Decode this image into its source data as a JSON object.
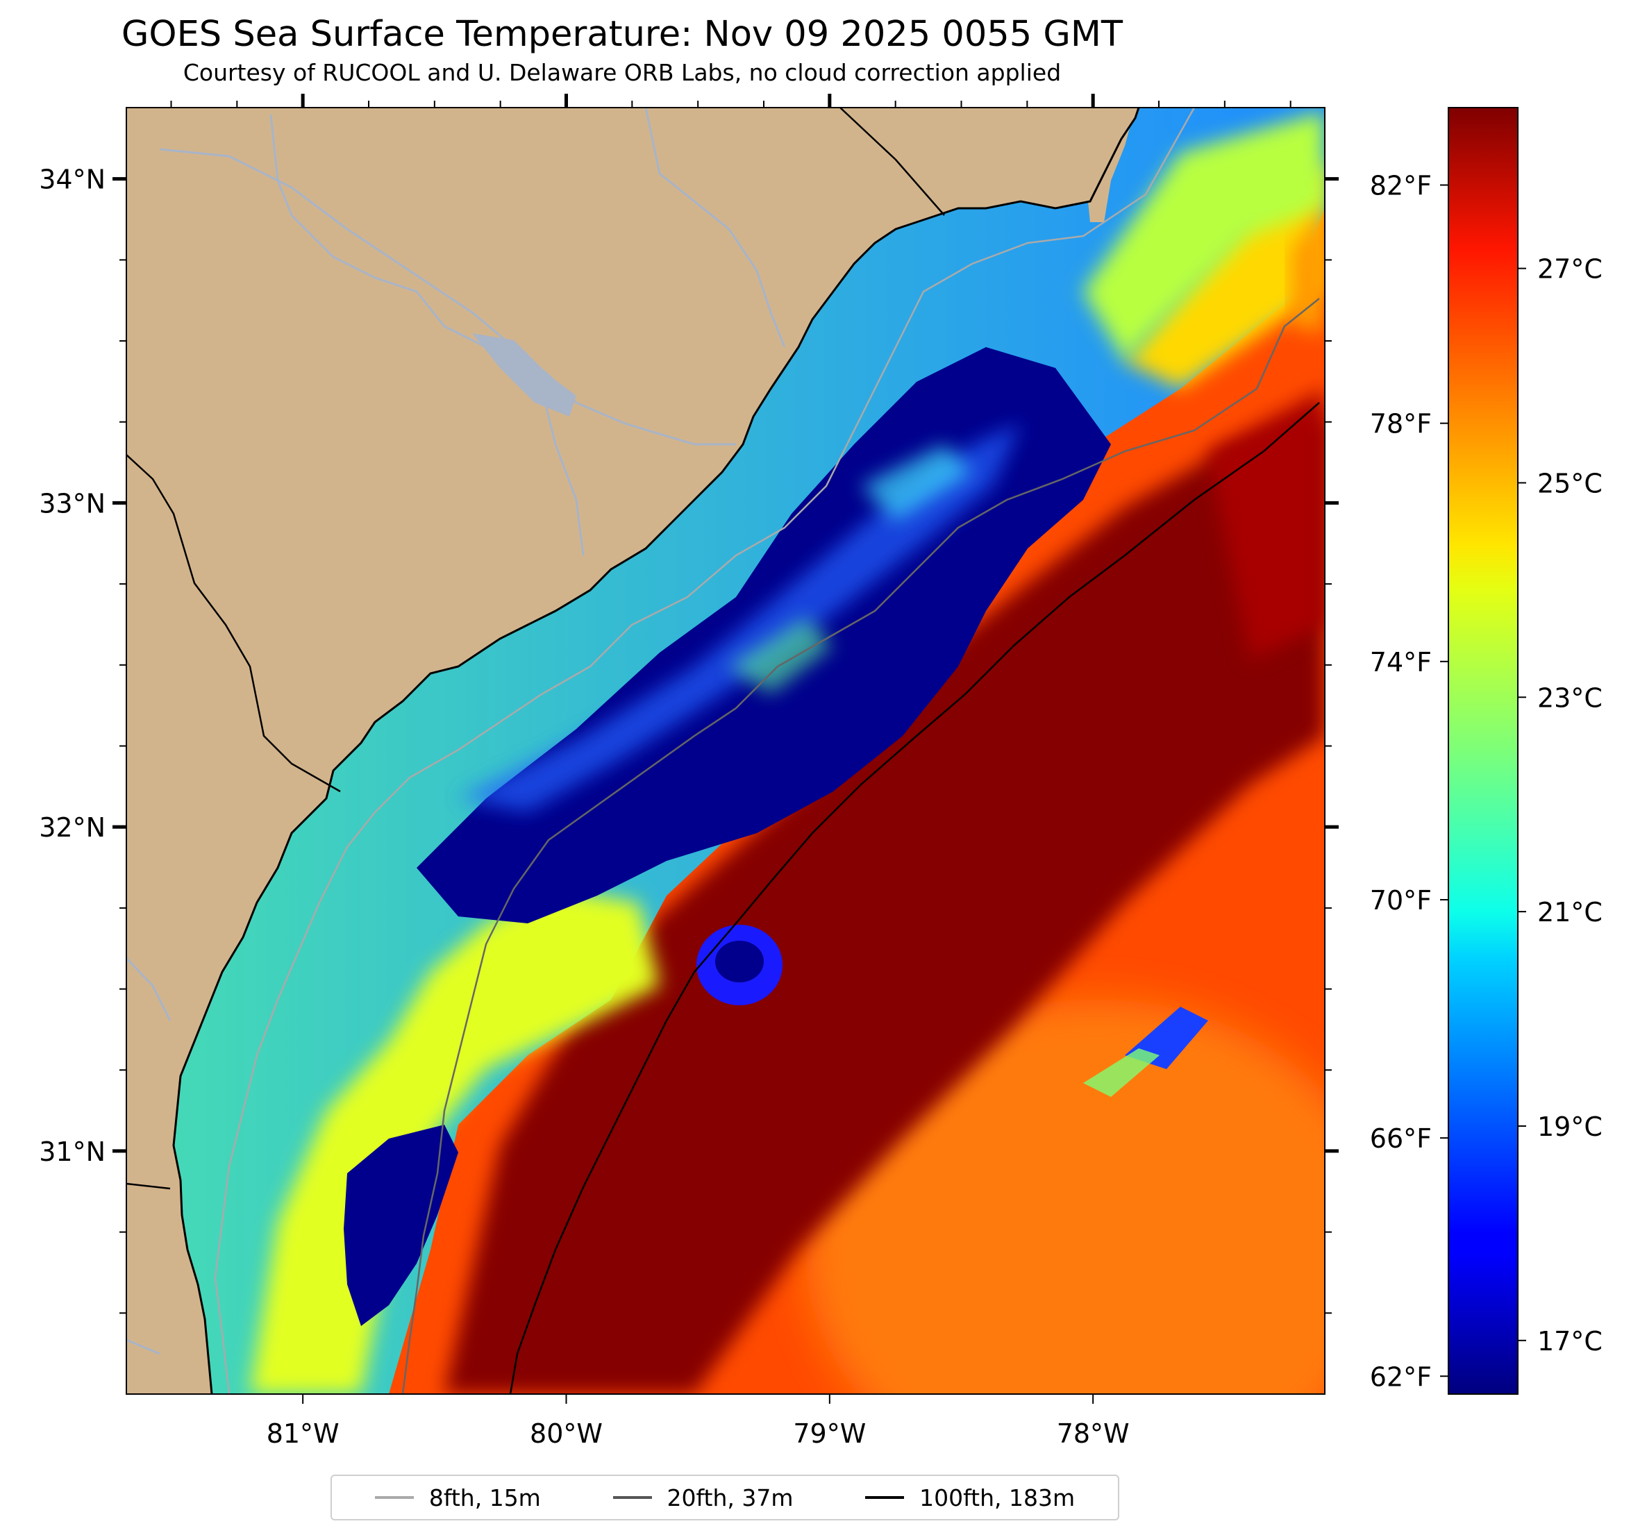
{
  "title": "GOES Sea Surface Temperature: Nov 09 2025 0055 GMT",
  "subtitle": "Courtesy of RUCOOL and U. Delaware ORB Labs, no cloud correction applied",
  "map": {
    "lon_range": [
      -81.67,
      -77.12
    ],
    "lat_range": [
      30.25,
      34.22
    ],
    "lat_ticks": [
      {
        "value": 34,
        "label": "34°N"
      },
      {
        "value": 33,
        "label": "33°N"
      },
      {
        "value": 32,
        "label": "32°N"
      },
      {
        "value": 31,
        "label": "31°N"
      }
    ],
    "lon_ticks": [
      {
        "value": -81,
        "label": "81°W"
      },
      {
        "value": -80,
        "label": "80°W"
      },
      {
        "value": -79,
        "label": "79°W"
      },
      {
        "value": -78,
        "label": "78°W"
      }
    ],
    "land_color": "#d2b48c",
    "river_color": "#a8b4c8"
  },
  "colorbar": {
    "colormap": "jet",
    "range_c": [
      16.5,
      28.5
    ],
    "celsius_ticks": [
      {
        "value": 17,
        "label": "17°C"
      },
      {
        "value": 19,
        "label": "19°C"
      },
      {
        "value": 21,
        "label": "21°C"
      },
      {
        "value": 23,
        "label": "23°C"
      },
      {
        "value": 25,
        "label": "25°C"
      },
      {
        "value": 27,
        "label": "27°C"
      }
    ],
    "fahrenheit_ticks": [
      {
        "value": 62,
        "label": "62°F"
      },
      {
        "value": 66,
        "label": "66°F"
      },
      {
        "value": 70,
        "label": "70°F"
      },
      {
        "value": 74,
        "label": "74°F"
      },
      {
        "value": 78,
        "label": "78°F"
      },
      {
        "value": 82,
        "label": "82°F"
      }
    ]
  },
  "legend": [
    {
      "label": "8fth, 15m",
      "color": "#aaaaaa"
    },
    {
      "label": "20fth, 37m",
      "color": "#555555"
    },
    {
      "label": "100fth, 183m",
      "color": "#000000"
    }
  ]
}
